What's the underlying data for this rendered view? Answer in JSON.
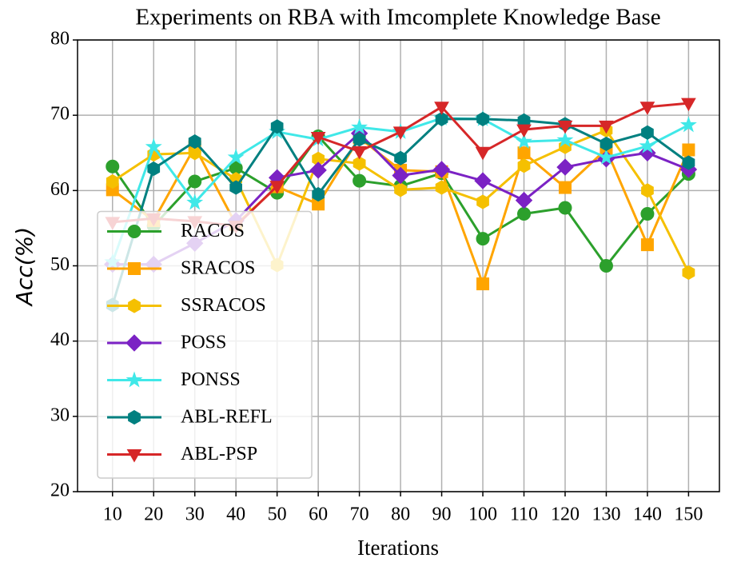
{
  "chart_data": {
    "type": "line",
    "title": "Experiments on RBA with Imcomplete Knowledge Base",
    "xlabel": "Iterations",
    "ylabel": "Acc(%)",
    "x": [
      10,
      20,
      30,
      40,
      50,
      60,
      70,
      80,
      90,
      100,
      110,
      120,
      130,
      140,
      150
    ],
    "xlim": [
      1.5,
      157.5
    ],
    "xticks": [
      10,
      20,
      30,
      40,
      50,
      60,
      70,
      80,
      90,
      100,
      110,
      120,
      130,
      140,
      150
    ],
    "ylim": [
      20,
      80
    ],
    "yticks": [
      20,
      30,
      40,
      50,
      60,
      70,
      80
    ],
    "grid": true,
    "legend": "lower left",
    "series": [
      {
        "name": "RACOS",
        "color": "#2ca02c",
        "marker": "circle",
        "values": [
          63.2,
          55.3,
          61.2,
          63.0,
          59.7,
          67.2,
          61.3,
          60.6,
          62.3,
          53.6,
          56.9,
          57.7,
          50.0,
          56.9,
          62.2
        ]
      },
      {
        "name": "SRACOS",
        "color": "#ffa500",
        "marker": "square",
        "values": [
          60.1,
          56.0,
          65.8,
          55.5,
          60.5,
          58.2,
          67.0,
          62.7,
          62.5,
          47.6,
          65.0,
          60.4,
          65.5,
          52.8,
          65.4
        ]
      },
      {
        "name": "SSRACOS",
        "color": "#f5c000",
        "marker": "hexagon",
        "values": [
          61.2,
          64.8,
          65.0,
          61.5,
          50.1,
          64.2,
          63.6,
          60.1,
          60.4,
          58.5,
          63.3,
          65.8,
          68.0,
          60.0,
          49.1
        ]
      },
      {
        "name": "POSS",
        "color": "#7b22c4",
        "marker": "diamond",
        "values": [
          50.2,
          50.2,
          53.0,
          56.0,
          61.7,
          62.7,
          67.6,
          62.0,
          62.8,
          61.3,
          58.7,
          63.1,
          64.2,
          65.0,
          62.8
        ]
      },
      {
        "name": "PONSS",
        "color": "#40e8e8",
        "marker": "star",
        "values": [
          50.5,
          65.8,
          58.4,
          64.4,
          67.8,
          66.8,
          68.4,
          67.8,
          69.6,
          69.5,
          66.5,
          66.7,
          64.4,
          65.9,
          68.7
        ]
      },
      {
        "name": "ABL-REFL",
        "color": "#008080",
        "marker": "hexagon",
        "values": [
          44.8,
          62.9,
          66.5,
          60.4,
          68.5,
          59.5,
          66.8,
          64.3,
          69.5,
          69.5,
          69.3,
          68.8,
          66.2,
          67.7,
          63.7
        ]
      },
      {
        "name": "ABL-PSP",
        "color": "#d62728",
        "marker": "triangle_down",
        "values": [
          55.8,
          56.3,
          55.9,
          55.3,
          60.6,
          67.1,
          65.2,
          67.8,
          71.1,
          65.1,
          68.1,
          68.6,
          68.6,
          71.1,
          71.6
        ]
      }
    ]
  }
}
